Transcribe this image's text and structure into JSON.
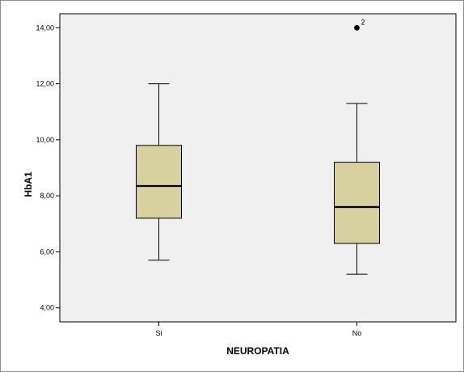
{
  "chart_data": {
    "type": "box",
    "xlabel": "NEUROPATIA",
    "ylabel": "HbA1",
    "ylim": [
      3.5,
      14.5
    ],
    "yticks": [
      {
        "value": 4,
        "label": "4,00"
      },
      {
        "value": 6,
        "label": "6,00"
      },
      {
        "value": 8,
        "label": "8,00"
      },
      {
        "value": 10,
        "label": "10,00"
      },
      {
        "value": 12,
        "label": "12,00"
      },
      {
        "value": 14,
        "label": "14,00"
      }
    ],
    "categories": [
      "Si",
      "No"
    ],
    "boxes": [
      {
        "category": "Si",
        "min": 5.7,
        "q1": 7.2,
        "median": 8.35,
        "q3": 9.8,
        "max": 12.0,
        "outliers": []
      },
      {
        "category": "No",
        "min": 5.2,
        "q1": 6.3,
        "median": 7.6,
        "q3": 9.2,
        "max": 11.3,
        "outliers": [
          {
            "value": 14.0,
            "label": "2"
          }
        ]
      }
    ],
    "colors": {
      "plot_background": "#f0f0f0",
      "box_fill": "#d6d19e",
      "line": "#000000"
    },
    "grid": false,
    "legend": "none"
  }
}
